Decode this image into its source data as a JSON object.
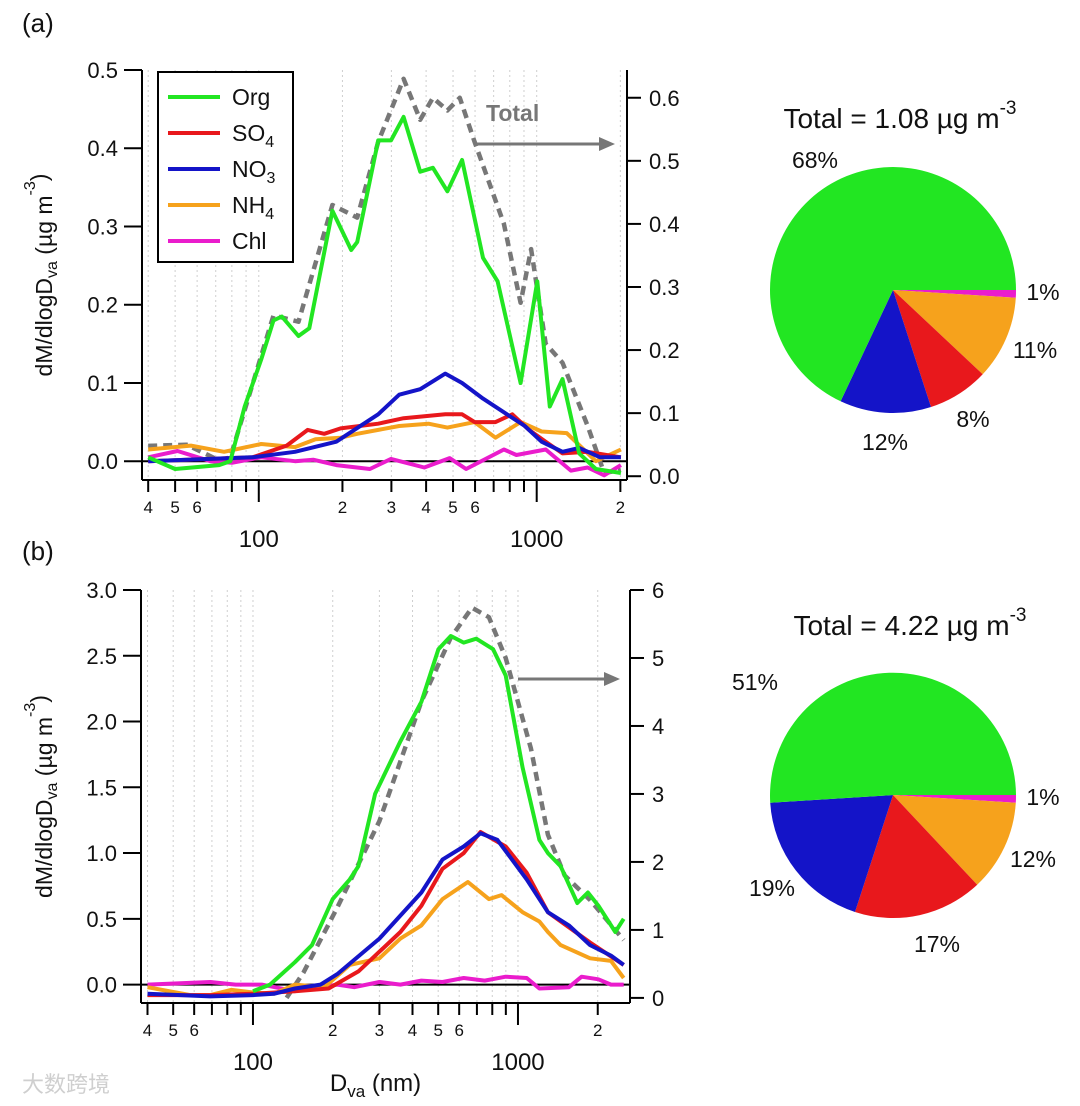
{
  "watermark": "大数跨境",
  "series_colors": {
    "Org": "#22e622",
    "SO4": "#e8181c",
    "NO3": "#1414c8",
    "NH4": "#f6a21c",
    "Chl": "#ea1ccc",
    "Total": "#777777"
  },
  "legend": [
    {
      "key": "Org",
      "label_main": "Org",
      "label_sub": ""
    },
    {
      "key": "SO4",
      "label_main": "SO",
      "label_sub": "4"
    },
    {
      "key": "NO3",
      "label_main": "NO",
      "label_sub": "3"
    },
    {
      "key": "NH4",
      "label_main": "NH",
      "label_sub": "4"
    },
    {
      "key": "Chl",
      "label_main": "Chl",
      "label_sub": ""
    }
  ],
  "chart_data": [
    {
      "type": "line",
      "panel_label": "(a)",
      "xscale": "log",
      "xlim": [
        38,
        2113
      ],
      "x_minor_ticks": [
        40,
        50,
        60,
        70,
        80,
        90,
        200,
        300,
        400,
        500,
        600,
        700,
        800,
        900,
        2000
      ],
      "x_minor_labels": [
        {
          "v": 40,
          "t": "4"
        },
        {
          "v": 50,
          "t": "5"
        },
        {
          "v": 60,
          "t": "6"
        },
        {
          "v": 200,
          "t": "2"
        },
        {
          "v": 300,
          "t": "3"
        },
        {
          "v": 400,
          "t": "4"
        },
        {
          "v": 500,
          "t": "5"
        },
        {
          "v": 600,
          "t": "6"
        },
        {
          "v": 2000,
          "t": "2"
        }
      ],
      "x_major_labels": [
        {
          "v": 100,
          "t": "100"
        },
        {
          "v": 1000,
          "t": "1000"
        }
      ],
      "xlabel": null,
      "ylabel": {
        "main": "dM/dlogD",
        "sub": "va",
        "unit": " (µg m",
        "sup": "-3",
        "close": ")"
      },
      "ylim": [
        -0.024,
        0.5
      ],
      "yticks": [
        {
          "v": 0,
          "t": "0.0"
        },
        {
          "v": 0.1,
          "t": "0.1"
        },
        {
          "v": 0.2,
          "t": "0.2"
        },
        {
          "v": 0.3,
          "t": "0.3"
        },
        {
          "v": 0.4,
          "t": "0.4"
        },
        {
          "v": 0.5,
          "t": "0.5"
        }
      ],
      "y2lim": [
        -0.006,
        0.644
      ],
      "y2ticks": [
        {
          "v": 0,
          "t": "0.0"
        },
        {
          "v": 0.1,
          "t": "0.1"
        },
        {
          "v": 0.2,
          "t": "0.2"
        },
        {
          "v": 0.3,
          "t": "0.3"
        },
        {
          "v": 0.4,
          "t": "0.4"
        },
        {
          "v": 0.5,
          "t": "0.5"
        },
        {
          "v": 0.6,
          "t": "0.6"
        }
      ],
      "total_annotation": "Total",
      "series": [
        {
          "name": "Org",
          "axis": "left",
          "x": [
            40,
            50,
            72,
            79,
            89,
            102,
            113,
            121,
            139,
            152,
            184,
            215,
            226,
            269,
            299,
            332,
            381,
            423,
            477,
            539,
            641,
            723,
            875,
            1005,
            1115,
            1238,
            1422,
            1633,
            2009
          ],
          "y": [
            0.005,
            -0.01,
            -0.005,
            0.0,
            0.07,
            0.13,
            0.18,
            0.185,
            0.16,
            0.17,
            0.32,
            0.27,
            0.28,
            0.41,
            0.41,
            0.44,
            0.37,
            0.375,
            0.345,
            0.385,
            0.26,
            0.23,
            0.1,
            0.23,
            0.07,
            0.105,
            0.01,
            -0.01,
            -0.015
          ]
        },
        {
          "name": "SO4",
          "axis": "left",
          "x": [
            40,
            95,
            126,
            150,
            172,
            197,
            269,
            332,
            469,
            539,
            598,
            711,
            817,
            938,
            1077,
            1238,
            1524,
            2009
          ],
          "y": [
            0.0,
            0.005,
            0.02,
            0.04,
            0.035,
            0.042,
            0.048,
            0.055,
            0.06,
            0.06,
            0.05,
            0.05,
            0.06,
            0.04,
            0.025,
            0.01,
            0.012,
            0.005
          ]
        },
        {
          "name": "NO3",
          "axis": "left",
          "x": [
            40,
            95,
            135,
            190,
            269,
            320,
            381,
            469,
            539,
            641,
            906,
            1041,
            1238,
            1422,
            1691,
            2009
          ],
          "y": [
            0.0,
            0.005,
            0.012,
            0.025,
            0.06,
            0.085,
            0.092,
            0.112,
            0.1,
            0.08,
            0.045,
            0.025,
            0.012,
            0.017,
            0.005,
            0.005
          ]
        },
        {
          "name": "NH4",
          "axis": "left",
          "x": [
            40,
            57,
            75,
            102,
            135,
            160,
            197,
            226,
            320,
            408,
            477,
            598,
            711,
            875,
            1041,
            1282,
            1633,
            2009
          ],
          "y": [
            0.015,
            0.02,
            0.012,
            0.022,
            0.018,
            0.028,
            0.03,
            0.035,
            0.045,
            0.048,
            0.043,
            0.05,
            0.03,
            0.05,
            0.038,
            0.036,
            0.0,
            0.015
          ]
        },
        {
          "name": "Chl",
          "axis": "left",
          "x": [
            40,
            51,
            67,
            80,
            102,
            135,
            157,
            190,
            251,
            299,
            394,
            486,
            557,
            762,
            845,
            1077,
            1327,
            1524,
            1750,
            2009
          ],
          "y": [
            0.005,
            0.013,
            0.0,
            -0.002,
            0.005,
            0.0,
            0.002,
            -0.005,
            -0.01,
            0.003,
            -0.008,
            0.004,
            -0.01,
            0.015,
            0.008,
            0.015,
            -0.012,
            -0.008,
            -0.018,
            -0.005
          ]
        },
        {
          "name": "Total",
          "axis": "right",
          "x": [
            40,
            55,
            72,
            79,
            113,
            139,
            184,
            226,
            269,
            332,
            381,
            423,
            477,
            529,
            598,
            762,
            875,
            955,
            1077,
            1238,
            1524,
            1750,
            2009
          ],
          "y": [
            0.048,
            0.05,
            0.025,
            0.03,
            0.255,
            0.245,
            0.43,
            0.41,
            0.53,
            0.63,
            0.565,
            0.6,
            0.58,
            0.6,
            0.53,
            0.4,
            0.275,
            0.36,
            0.21,
            0.18,
            0.08,
            0.005,
            0.01
          ]
        }
      ]
    },
    {
      "type": "pie",
      "title": {
        "main": "Total = 1.08 µg m",
        "sup": "-3"
      },
      "slices": [
        {
          "name": "Chl",
          "value": 1,
          "label": "1%"
        },
        {
          "name": "NH4",
          "value": 11,
          "label": "11%"
        },
        {
          "name": "SO4",
          "value": 8,
          "label": "8%"
        },
        {
          "name": "NO3",
          "value": 12,
          "label": "12%"
        },
        {
          "name": "Org",
          "value": 68,
          "label": "68%"
        }
      ]
    },
    {
      "type": "line",
      "panel_label": "(b)",
      "xscale": "log",
      "xlim": [
        37.8,
        2647
      ],
      "x_minor_ticks": [
        40,
        50,
        60,
        70,
        80,
        90,
        200,
        300,
        400,
        500,
        600,
        700,
        800,
        900,
        2000
      ],
      "x_minor_labels": [
        {
          "v": 40,
          "t": "4"
        },
        {
          "v": 50,
          "t": "5"
        },
        {
          "v": 60,
          "t": "6"
        },
        {
          "v": 200,
          "t": "2"
        },
        {
          "v": 300,
          "t": "3"
        },
        {
          "v": 400,
          "t": "4"
        },
        {
          "v": 500,
          "t": "5"
        },
        {
          "v": 600,
          "t": "6"
        },
        {
          "v": 2000,
          "t": "2"
        }
      ],
      "x_major_labels": [
        {
          "v": 100,
          "t": "100"
        },
        {
          "v": 1000,
          "t": "1000"
        }
      ],
      "xlabel": {
        "main": "D",
        "sub": "va",
        "rest": " (nm)"
      },
      "ylabel": {
        "main": "dM/dlogD",
        "sub": "va",
        "unit": " (µg m",
        "sup": "-3",
        "close": ")"
      },
      "ylim": [
        -0.14,
        3.0
      ],
      "yticks": [
        {
          "v": 0,
          "t": "0.0"
        },
        {
          "v": 0.5,
          "t": "0.5"
        },
        {
          "v": 1.0,
          "t": "1.0"
        },
        {
          "v": 1.5,
          "t": "1.5"
        },
        {
          "v": 2.0,
          "t": "2.0"
        },
        {
          "v": 2.5,
          "t": "2.5"
        },
        {
          "v": 3.0,
          "t": "3.0"
        }
      ],
      "y2lim": [
        -0.075,
        6
      ],
      "y2ticks": [
        {
          "v": 0,
          "t": "0"
        },
        {
          "v": 1,
          "t": "1"
        },
        {
          "v": 2,
          "t": "2"
        },
        {
          "v": 3,
          "t": "3"
        },
        {
          "v": 4,
          "t": "4"
        },
        {
          "v": 5,
          "t": "5"
        },
        {
          "v": 6,
          "t": "6"
        }
      ],
      "total_annotation": null,
      "series": [
        {
          "name": "Org",
          "axis": "left",
          "x": [
            100,
            116,
            144,
            167,
            200,
            232,
            250,
            289,
            360,
            432,
            501,
            558,
            624,
            696,
            806,
            899,
            1041,
            1205,
            1297,
            1448,
            1675,
            1836,
            2012,
            2329,
            2506
          ],
          "y": [
            -0.05,
            0.0,
            0.17,
            0.3,
            0.65,
            0.8,
            0.9,
            1.45,
            1.85,
            2.15,
            2.55,
            2.65,
            2.6,
            2.63,
            2.55,
            2.35,
            1.65,
            1.1,
            1.0,
            0.9,
            0.62,
            0.7,
            0.6,
            0.4,
            0.5
          ]
        },
        {
          "name": "SO4",
          "axis": "left",
          "x": [
            40,
            69,
            100,
            144,
            193,
            250,
            360,
            432,
            519,
            624,
            722,
            899,
            1079,
            1297,
            1871,
            2506
          ],
          "y": [
            -0.08,
            -0.08,
            -0.07,
            -0.05,
            -0.03,
            0.1,
            0.4,
            0.6,
            0.88,
            1.0,
            1.16,
            1.05,
            0.85,
            0.55,
            0.32,
            0.15
          ]
        },
        {
          "name": "NO3",
          "axis": "left",
          "x": [
            40,
            69,
            100,
            120,
            144,
            180,
            208,
            300,
            432,
            519,
            624,
            722,
            836,
            1079,
            1297,
            1556,
            1871,
            2245,
            2506
          ],
          "y": [
            -0.07,
            -0.09,
            -0.08,
            -0.07,
            -0.03,
            0.0,
            0.08,
            0.35,
            0.7,
            0.95,
            1.05,
            1.15,
            1.1,
            0.8,
            0.55,
            0.45,
            0.3,
            0.22,
            0.15
          ]
        },
        {
          "name": "NH4",
          "axis": "left",
          "x": [
            40,
            58,
            69,
            83,
            100,
            120,
            144,
            186,
            232,
            300,
            360,
            432,
            519,
            647,
            777,
            867,
            1041,
            1205,
            1297,
            1448,
            1871,
            2245,
            2506
          ],
          "y": [
            -0.02,
            -0.08,
            -0.08,
            -0.04,
            -0.06,
            -0.07,
            0.0,
            -0.02,
            0.15,
            0.2,
            0.35,
            0.45,
            0.65,
            0.78,
            0.65,
            0.68,
            0.55,
            0.48,
            0.4,
            0.3,
            0.2,
            0.18,
            0.05
          ]
        },
        {
          "name": "Chl",
          "axis": "left",
          "x": [
            40,
            69,
            86,
            108,
            144,
            208,
            241,
            300,
            360,
            432,
            519,
            624,
            749,
            899,
            1079,
            1205,
            1556,
            1738,
            2012,
            2245,
            2506
          ],
          "y": [
            0.0,
            0.02,
            0.0,
            0.0,
            -0.05,
            0.0,
            -0.02,
            0.02,
            0.0,
            0.03,
            0.02,
            0.05,
            0.03,
            0.06,
            0.05,
            -0.03,
            -0.02,
            0.06,
            0.04,
            0.0,
            0.0
          ]
        },
        {
          "name": "Total",
          "axis": "right",
          "x": [
            134,
            155,
            208,
            300,
            432,
            558,
            671,
            777,
            899,
            1119,
            1297,
            1501,
            1871,
            2506
          ],
          "y": [
            0.0,
            0.37,
            1.33,
            2.6,
            4.36,
            5.3,
            5.74,
            5.6,
            5.0,
            3.67,
            2.4,
            1.8,
            1.44,
            0.85
          ]
        }
      ]
    },
    {
      "type": "pie",
      "title": {
        "main": "Total = 4.22 µg m",
        "sup": "-3"
      },
      "slices": [
        {
          "name": "Chl",
          "value": 1,
          "label": "1%"
        },
        {
          "name": "NH4",
          "value": 12,
          "label": "12%"
        },
        {
          "name": "SO4",
          "value": 17,
          "label": "17%"
        },
        {
          "name": "NO3",
          "value": 19,
          "label": "19%"
        },
        {
          "name": "Org",
          "value": 51,
          "label": "51%"
        }
      ]
    }
  ]
}
